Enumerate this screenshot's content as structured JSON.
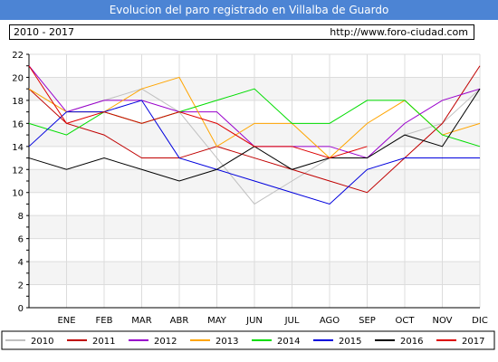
{
  "header": {
    "title": "Evolucion del paro registrado en Villalba de Guardo",
    "period": "2010 - 2017",
    "url": "http://www.foro-ciudad.com"
  },
  "chart_data": {
    "type": "line",
    "title": "Evolucion del paro registrado en Villalba de Guardo",
    "xlabel": "",
    "ylabel": "",
    "categories": [
      "",
      "ENE",
      "FEB",
      "MAR",
      "ABR",
      "MAY",
      "JUN",
      "JUL",
      "AGO",
      "SEP",
      "OCT",
      "NOV",
      "DIC"
    ],
    "ylim": [
      0,
      22
    ],
    "yticks": [
      0,
      2,
      4,
      6,
      8,
      10,
      12,
      14,
      16,
      18,
      20,
      22
    ],
    "grid": true,
    "legend_position": "bottom",
    "series": [
      {
        "name": "2010",
        "color": "#c0c0c0",
        "values": [
          19,
          17,
          18,
          19,
          17,
          13,
          9,
          11,
          13,
          13,
          15,
          16,
          19
        ]
      },
      {
        "name": "2011",
        "color": "#c00000",
        "values": [
          19,
          16,
          15,
          13,
          13,
          14,
          13,
          12,
          11,
          10,
          13,
          16,
          21
        ]
      },
      {
        "name": "2012",
        "color": "#9900cc",
        "values": [
          21,
          17,
          18,
          18,
          17,
          17,
          14,
          14,
          14,
          13,
          16,
          18,
          19
        ]
      },
      {
        "name": "2013",
        "color": "#ffa500",
        "values": [
          19,
          17,
          17,
          19,
          20,
          14,
          16,
          16,
          13,
          16,
          18,
          15,
          16
        ]
      },
      {
        "name": "2014",
        "color": "#00dd00",
        "values": [
          16,
          15,
          17,
          16,
          17,
          18,
          19,
          16,
          16,
          18,
          18,
          15,
          14
        ]
      },
      {
        "name": "2015",
        "color": "#0000dd",
        "values": [
          14,
          17,
          17,
          18,
          13,
          12,
          11,
          10,
          9,
          12,
          13,
          13,
          13
        ]
      },
      {
        "name": "2016",
        "color": "#000000",
        "values": [
          13,
          12,
          13,
          12,
          11,
          12,
          14,
          12,
          13,
          13,
          15,
          14,
          19
        ]
      },
      {
        "name": "2017",
        "color": "#dd0000",
        "values": [
          21,
          16,
          17,
          16,
          17,
          16,
          14,
          14,
          13,
          14,
          null,
          null,
          null
        ]
      }
    ]
  }
}
